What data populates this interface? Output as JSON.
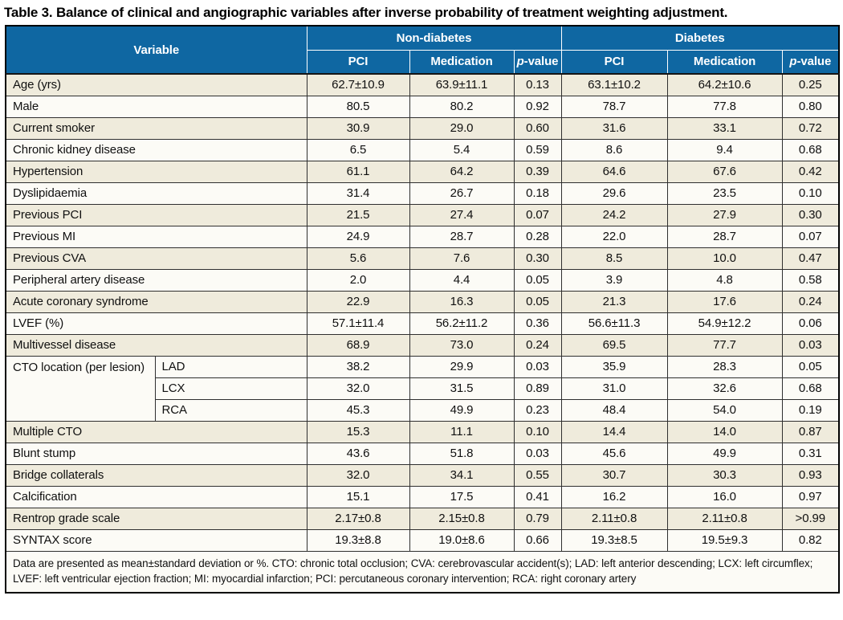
{
  "title": "Table 3. Balance of clinical and angiographic variables after inverse probability of treatment weighting adjustment.",
  "colors": {
    "header_bg": "#0f67a2",
    "row_beige": "#efebdc",
    "row_white": "#fcfbf6",
    "grid": "#2f2f2f",
    "outer": "#000000"
  },
  "table": {
    "header": {
      "variable": "Variable"
    },
    "p_value": {
      "italic": "p",
      "rest": "-value"
    },
    "groups": [
      {
        "label": "Non-diabetes",
        "sub_columns": [
          "PCI",
          "Medication"
        ]
      },
      {
        "label": "Diabetes",
        "sub_columns": [
          "PCI",
          "Medication"
        ]
      }
    ],
    "rows": [
      {
        "label": "Age (yrs)",
        "values": [
          "62.7±10.9",
          "63.9±11.1",
          "0.13",
          "63.1±10.2",
          "64.2±10.6",
          "0.25"
        ]
      },
      {
        "label": "Male",
        "values": [
          "80.5",
          "80.2",
          "0.92",
          "78.7",
          "77.8",
          "0.80"
        ]
      },
      {
        "label": "Current smoker",
        "values": [
          "30.9",
          "29.0",
          "0.60",
          "31.6",
          "33.1",
          "0.72"
        ]
      },
      {
        "label": "Chronic kidney disease",
        "values": [
          "6.5",
          "5.4",
          "0.59",
          "8.6",
          "9.4",
          "0.68"
        ]
      },
      {
        "label": "Hypertension",
        "values": [
          "61.1",
          "64.2",
          "0.39",
          "64.6",
          "67.6",
          "0.42"
        ]
      },
      {
        "label": "Dyslipidaemia",
        "values": [
          "31.4",
          "26.7",
          "0.18",
          "29.6",
          "23.5",
          "0.10"
        ]
      },
      {
        "label": "Previous PCI",
        "values": [
          "21.5",
          "27.4",
          "0.07",
          "24.2",
          "27.9",
          "0.30"
        ]
      },
      {
        "label": "Previous MI",
        "values": [
          "24.9",
          "28.7",
          "0.28",
          "22.0",
          "28.7",
          "0.07"
        ]
      },
      {
        "label": "Previous CVA",
        "values": [
          "5.6",
          "7.6",
          "0.30",
          "8.5",
          "10.0",
          "0.47"
        ]
      },
      {
        "label": "Peripheral artery disease",
        "values": [
          "2.0",
          "4.4",
          "0.05",
          "3.9",
          "4.8",
          "0.58"
        ]
      },
      {
        "label": "Acute coronary syndrome",
        "values": [
          "22.9",
          "16.3",
          "0.05",
          "21.3",
          "17.6",
          "0.24"
        ]
      },
      {
        "label": "LVEF (%)",
        "values": [
          "57.1±11.4",
          "56.2±11.2",
          "0.36",
          "56.6±11.3",
          "54.9±12.2",
          "0.06"
        ]
      },
      {
        "label": "Multivessel disease",
        "values": [
          "68.9",
          "73.0",
          "0.24",
          "69.5",
          "77.7",
          "0.03"
        ]
      },
      {
        "label": "CTO location (per lesion)",
        "sub_rows": [
          {
            "label": "LAD",
            "values": [
              "38.2",
              "29.9",
              "0.03",
              "35.9",
              "28.3",
              "0.05"
            ]
          },
          {
            "label": "LCX",
            "values": [
              "32.0",
              "31.5",
              "0.89",
              "31.0",
              "32.6",
              "0.68"
            ]
          },
          {
            "label": "RCA",
            "values": [
              "45.3",
              "49.9",
              "0.23",
              "48.4",
              "54.0",
              "0.19"
            ]
          }
        ]
      },
      {
        "label": "Multiple CTO",
        "values": [
          "15.3",
          "11.1",
          "0.10",
          "14.4",
          "14.0",
          "0.87"
        ]
      },
      {
        "label": "Blunt stump",
        "values": [
          "43.6",
          "51.8",
          "0.03",
          "45.6",
          "49.9",
          "0.31"
        ]
      },
      {
        "label": "Bridge collaterals",
        "values": [
          "32.0",
          "34.1",
          "0.55",
          "30.7",
          "30.3",
          "0.93"
        ]
      },
      {
        "label": "Calcification",
        "values": [
          "15.1",
          "17.5",
          "0.41",
          "16.2",
          "16.0",
          "0.97"
        ]
      },
      {
        "label": "Rentrop grade scale",
        "values": [
          "2.17±0.8",
          "2.15±0.8",
          "0.79",
          "2.11±0.8",
          "2.11±0.8",
          ">0.99"
        ]
      },
      {
        "label": "SYNTAX score",
        "values": [
          "19.3±8.8",
          "19.0±8.6",
          "0.66",
          "19.3±8.5",
          "19.5±9.3",
          "0.82"
        ]
      }
    ],
    "footnote": "Data are presented as mean±standard deviation or %. CTO: chronic total occlusion; CVA: cerebrovascular accident(s); LAD: left anterior descending; LCX: left circumflex; LVEF: left ventricular ejection fraction; MI: myocardial infarction; PCI: percutaneous coronary intervention; RCA: right coronary artery"
  }
}
